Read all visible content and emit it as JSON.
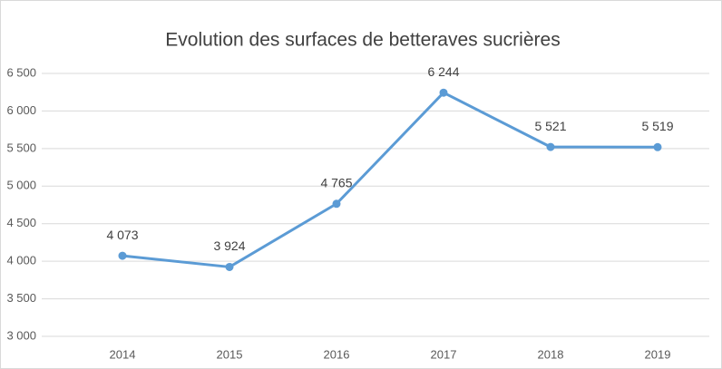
{
  "chart_data": {
    "type": "line",
    "title": "Evolution des surfaces de betteraves sucrières",
    "categories": [
      "2014",
      "2015",
      "2016",
      "2017",
      "2018",
      "2019"
    ],
    "values": [
      4073,
      3924,
      4765,
      6244,
      5521,
      5519
    ],
    "value_labels": [
      "4 073",
      "3 924",
      "4 765",
      "6 244",
      "5 521",
      "5 519"
    ],
    "color": "#5b9bd5",
    "ylim": [
      3000,
      6500
    ],
    "yticks": [
      {
        "value": 3000,
        "label": "3 000"
      },
      {
        "value": 3500,
        "label": "3 500"
      },
      {
        "value": 4000,
        "label": "4 000"
      },
      {
        "value": 4500,
        "label": "4 500"
      },
      {
        "value": 5000,
        "label": "5 000"
      },
      {
        "value": 5500,
        "label": "5 500"
      },
      {
        "value": 6000,
        "label": "6 000"
      },
      {
        "value": 6500,
        "label": "6 500"
      }
    ],
    "grid": true
  }
}
